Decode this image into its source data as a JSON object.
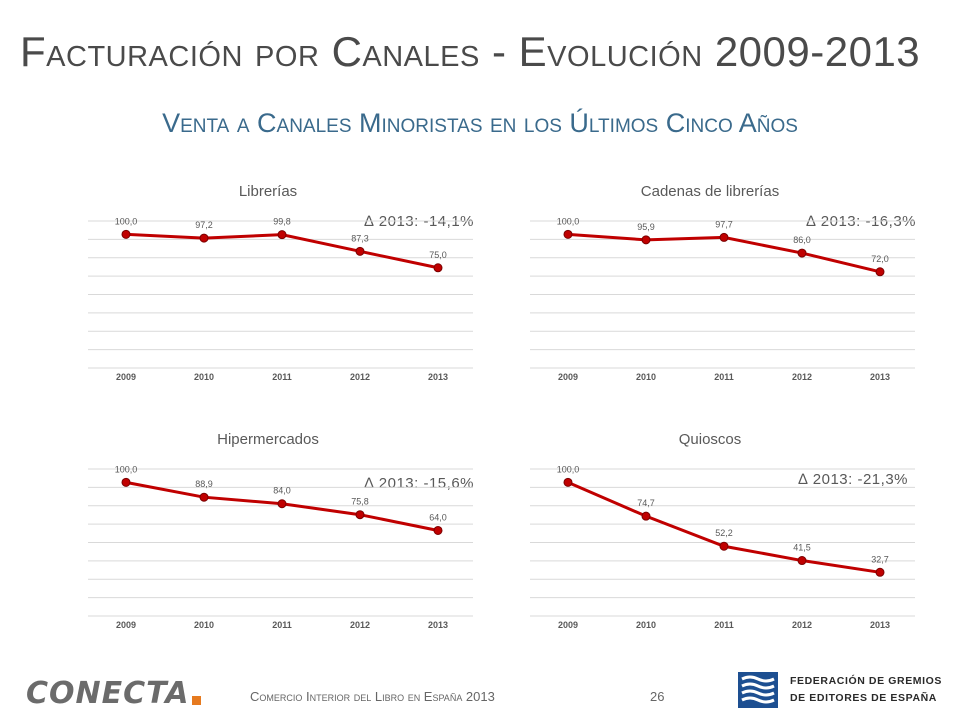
{
  "header": {
    "title": "Facturación por Canales - Evolución 2009-2013",
    "subtitle": "Venta a Canales Minoristas en los Últimos Cinco Años"
  },
  "chart_data": [
    {
      "type": "line",
      "title": "Librerías",
      "annotation": "∆ 2013:  -14,1%",
      "x": [
        "2009",
        "2010",
        "2011",
        "2012",
        "2013"
      ],
      "series": [
        {
          "values": [
            100.0,
            97.2,
            99.8,
            87.3,
            75.0
          ]
        }
      ],
      "data_labels": [
        "100,0",
        "97,2",
        "99,8",
        "87,3",
        "75,0"
      ],
      "ylim": [
        0,
        110
      ],
      "line_color": "#c00000",
      "grid": true
    },
    {
      "type": "line",
      "title": "Cadenas de librerías",
      "annotation": "∆ 2013:  -16,3%",
      "x": [
        "2009",
        "2010",
        "2011",
        "2012",
        "2013"
      ],
      "series": [
        {
          "values": [
            100.0,
            95.9,
            97.7,
            86.0,
            72.0
          ]
        }
      ],
      "data_labels": [
        "100,0",
        "95,9",
        "97,7",
        "86,0",
        "72,0"
      ],
      "ylim": [
        0,
        110
      ],
      "line_color": "#c00000",
      "grid": true
    },
    {
      "type": "line",
      "title": "Hipermercados",
      "annotation": "∆ 2013:  -15,6%",
      "x": [
        "2009",
        "2010",
        "2011",
        "2012",
        "2013"
      ],
      "series": [
        {
          "values": [
            100.0,
            88.9,
            84.0,
            75.8,
            64.0
          ]
        }
      ],
      "data_labels": [
        "100,0",
        "88,9",
        "84,0",
        "75,8",
        "64,0"
      ],
      "ylim": [
        0,
        110
      ],
      "line_color": "#c00000",
      "grid": true
    },
    {
      "type": "line",
      "title": "Quioscos",
      "annotation": "∆ 2013:  -21,3%",
      "x": [
        "2009",
        "2010",
        "2011",
        "2012",
        "2013"
      ],
      "series": [
        {
          "values": [
            100.0,
            74.7,
            52.2,
            41.5,
            32.7
          ]
        }
      ],
      "data_labels": [
        "100,0",
        "74,7",
        "52,2",
        "41,5",
        "32,7"
      ],
      "ylim": [
        0,
        110
      ],
      "line_color": "#c00000",
      "grid": true
    }
  ],
  "footer": {
    "text": "Comercio Interior del Libro en España 2013",
    "page_number": "26",
    "logo_left": "CONECTA",
    "logo_right_line1": "FEDERACIÓN DE GREMIOS",
    "logo_right_line2": "DE EDITORES DE ESPAÑA"
  },
  "colors": {
    "subtitle": "#3a6a8c",
    "line": "#c00000",
    "logo_accent": "#e67a1f",
    "logo_blue": "#1d4f91"
  }
}
